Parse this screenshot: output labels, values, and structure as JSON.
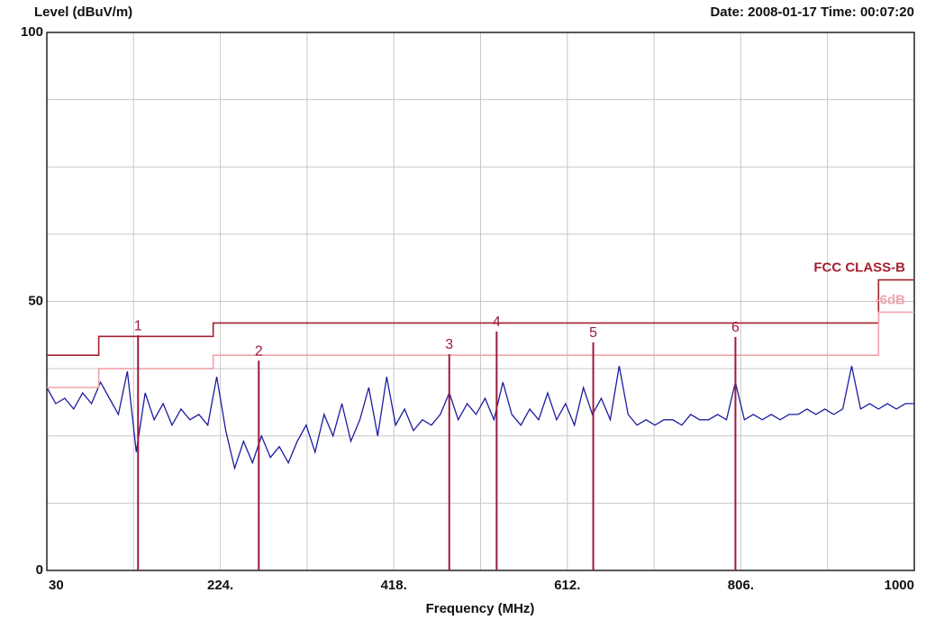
{
  "chart_data": {
    "type": "line",
    "y_label": "Level (dBuV/m)",
    "timestamp": "Date: 2008-01-17  Time: 00:07:20",
    "x_label": "Frequency (MHz)",
    "xlim": [
      30,
      1000
    ],
    "ylim": [
      0,
      100
    ],
    "xticks": [
      30,
      {
        "value": 224,
        "label": "224."
      },
      {
        "value": 418,
        "label": "418."
      },
      {
        "value": 612,
        "label": "612."
      },
      {
        "value": 806,
        "label": "806."
      },
      1000
    ],
    "yticks": [
      0,
      50,
      100
    ],
    "x_minor_grid": [
      127,
      321,
      515,
      709,
      903
    ],
    "y_minor_grid": [
      12.5,
      25,
      37.5,
      62.5,
      75,
      87.5
    ],
    "grid": true,
    "series": [
      {
        "color": "#1c1ca0",
        "x": [
          30,
          40,
          50,
          60,
          70,
          80,
          90,
          100,
          110,
          120,
          130,
          140,
          150,
          160,
          170,
          180,
          190,
          200,
          210,
          220,
          230,
          240,
          250,
          260,
          270,
          280,
          290,
          300,
          310,
          320,
          330,
          340,
          350,
          360,
          370,
          380,
          390,
          400,
          410,
          420,
          430,
          440,
          450,
          460,
          470,
          480,
          490,
          500,
          510,
          520,
          530,
          540,
          550,
          560,
          570,
          580,
          590,
          600,
          610,
          620,
          630,
          640,
          650,
          660,
          670,
          680,
          690,
          700,
          710,
          720,
          730,
          740,
          750,
          760,
          770,
          780,
          790,
          800,
          810,
          820,
          830,
          840,
          850,
          860,
          870,
          880,
          890,
          900,
          910,
          920,
          930,
          940,
          950,
          960,
          970,
          980,
          990,
          1000
        ],
        "values": [
          34,
          31,
          32,
          30,
          33,
          31,
          35,
          32,
          29,
          37,
          22,
          33,
          28,
          31,
          27,
          30,
          28,
          29,
          27,
          36,
          26,
          19,
          24,
          20,
          25,
          21,
          23,
          20,
          24,
          27,
          22,
          29,
          25,
          31,
          24,
          28,
          34,
          25,
          36,
          27,
          30,
          26,
          28,
          27,
          29,
          33,
          28,
          31,
          29,
          32,
          28,
          35,
          29,
          27,
          30,
          28,
          33,
          28,
          31,
          27,
          34,
          29,
          32,
          28,
          38,
          29,
          27,
          28,
          27,
          28,
          28,
          27,
          29,
          28,
          28,
          29,
          28,
          35,
          28,
          29,
          28,
          29,
          28,
          29,
          29,
          30,
          29,
          30,
          29,
          30,
          38,
          30,
          31,
          30,
          31,
          30,
          31,
          31
        ]
      },
      {
        "name": "FCC CLASS-B",
        "color": "#a4202e",
        "x": [
          30,
          88,
          88,
          216,
          216,
          960,
          960,
          1000
        ],
        "values": [
          40,
          40,
          43.5,
          43.5,
          46,
          46,
          54,
          54
        ]
      },
      {
        "name": "-6dB",
        "color": "#f0a4ac",
        "x": [
          30,
          88,
          88,
          216,
          216,
          960,
          960,
          1000
        ],
        "values": [
          34,
          34,
          37.5,
          37.5,
          40,
          40,
          48,
          48
        ]
      }
    ],
    "markers": [
      {
        "label": "1",
        "x": 132,
        "value": 43.7
      },
      {
        "label": "2",
        "x": 267,
        "value": 39
      },
      {
        "label": "3",
        "x": 480,
        "value": 40.2
      },
      {
        "label": "4",
        "x": 533,
        "value": 44.4
      },
      {
        "label": "5",
        "x": 641,
        "value": 42.4
      },
      {
        "label": "6",
        "x": 800,
        "value": 43.4
      }
    ],
    "marker_color": "#9c1a3c"
  }
}
